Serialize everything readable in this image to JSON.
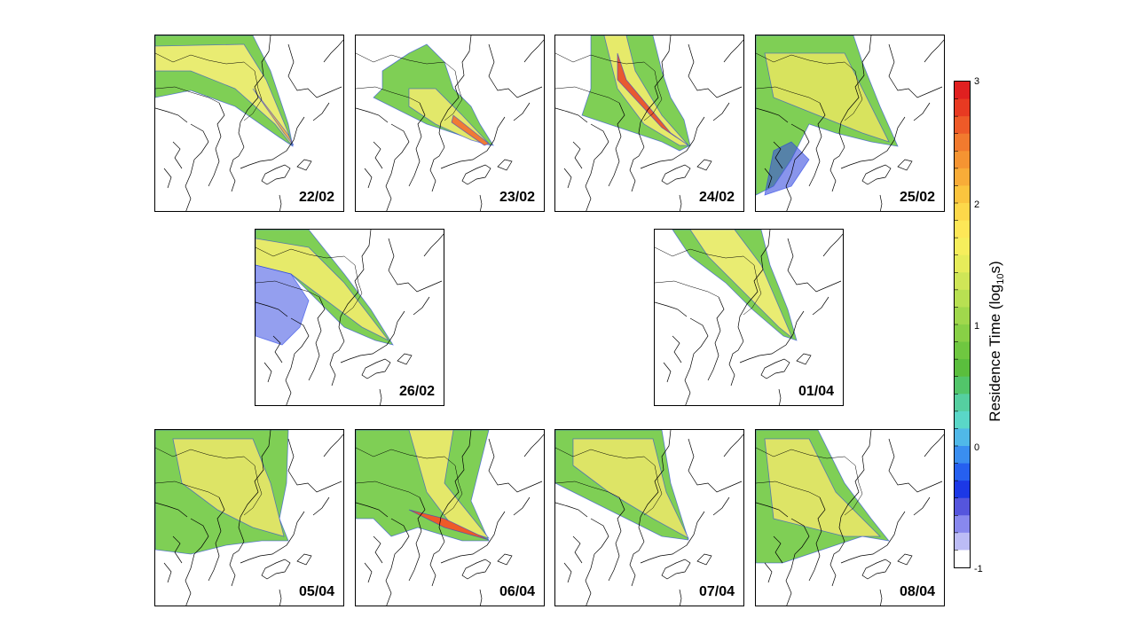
{
  "panels": [
    {
      "id": "p1",
      "date": "22/02"
    },
    {
      "id": "p2",
      "date": "23/02"
    },
    {
      "id": "p3",
      "date": "24/02"
    },
    {
      "id": "p4",
      "date": "25/02"
    },
    {
      "id": "p5",
      "date": "26/02"
    },
    {
      "id": "p6",
      "date": "01/04"
    },
    {
      "id": "p7",
      "date": "05/04"
    },
    {
      "id": "p8",
      "date": "06/04"
    },
    {
      "id": "p9",
      "date": "07/04"
    },
    {
      "id": "p10",
      "date": "08/04"
    }
  ],
  "colorbar": {
    "label_main": "Residence Time (log",
    "label_sub": "10",
    "label_end": "s)",
    "ticks": [
      "3",
      "2",
      "1",
      "0",
      "-1"
    ],
    "colors_top_to_bottom": [
      "#e02020",
      "#e83a22",
      "#ee5a28",
      "#f27a2e",
      "#f59432",
      "#f8ac38",
      "#fbc43e",
      "#fdd84a",
      "#fde757",
      "#f6ee5c",
      "#e6ec5a",
      "#cfe657",
      "#b8e052",
      "#a0d84c",
      "#88d046",
      "#6fc740",
      "#5abe3d",
      "#52c56a",
      "#55cfa0",
      "#5ad7c8",
      "#50b8e8",
      "#3a8ef0",
      "#2660f0",
      "#1c38e6",
      "#5555dd",
      "#8888ee",
      "#bcbcf6",
      "#ffffff"
    ]
  }
}
